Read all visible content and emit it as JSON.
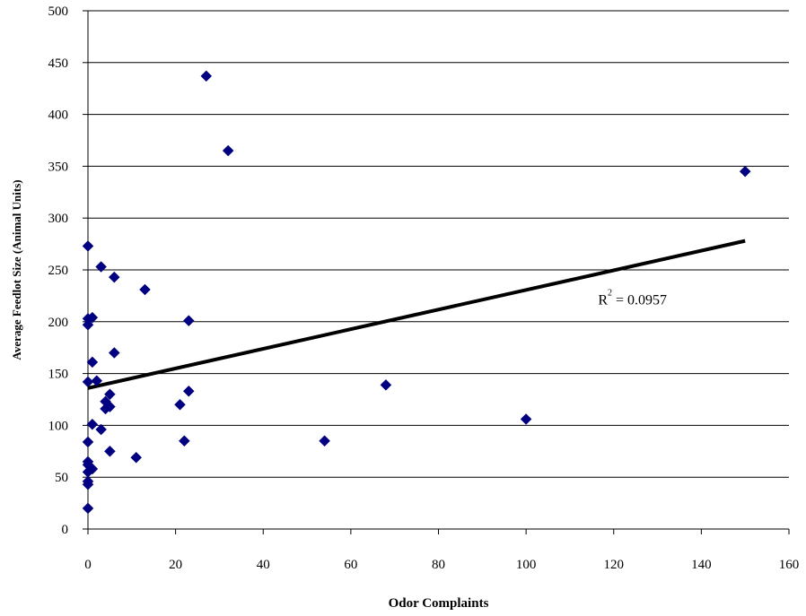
{
  "chart_data": {
    "type": "scatter",
    "xlabel": "Odor Complaints",
    "ylabel": "Average Feedlot Size (Animal Units)",
    "xlim": [
      0,
      160
    ],
    "ylim": [
      0,
      500
    ],
    "x_ticks": [
      "0",
      "20",
      "40",
      "60",
      "80",
      "100",
      "120",
      "140",
      "160"
    ],
    "y_ticks": [
      "0",
      "50",
      "100",
      "150",
      "200",
      "250",
      "300",
      "350",
      "400",
      "450",
      "500"
    ],
    "grid": "horizontal",
    "marker": "diamond",
    "marker_color": "#000080",
    "points": [
      {
        "x": 0,
        "y": 20
      },
      {
        "x": 0,
        "y": 43
      },
      {
        "x": 0,
        "y": 46
      },
      {
        "x": 0,
        "y": 55
      },
      {
        "x": 0,
        "y": 62
      },
      {
        "x": 0,
        "y": 65
      },
      {
        "x": 0,
        "y": 84
      },
      {
        "x": 0,
        "y": 142
      },
      {
        "x": 0,
        "y": 197
      },
      {
        "x": 0,
        "y": 203
      },
      {
        "x": 0,
        "y": 273
      },
      {
        "x": 1,
        "y": 58
      },
      {
        "x": 1,
        "y": 101
      },
      {
        "x": 1,
        "y": 161
      },
      {
        "x": 1,
        "y": 204
      },
      {
        "x": 2,
        "y": 143
      },
      {
        "x": 3,
        "y": 96
      },
      {
        "x": 3,
        "y": 253
      },
      {
        "x": 4,
        "y": 116
      },
      {
        "x": 4,
        "y": 123
      },
      {
        "x": 5,
        "y": 75
      },
      {
        "x": 5,
        "y": 118
      },
      {
        "x": 5,
        "y": 130
      },
      {
        "x": 6,
        "y": 170
      },
      {
        "x": 6,
        "y": 243
      },
      {
        "x": 11,
        "y": 69
      },
      {
        "x": 13,
        "y": 231
      },
      {
        "x": 21,
        "y": 120
      },
      {
        "x": 22,
        "y": 85
      },
      {
        "x": 23,
        "y": 133
      },
      {
        "x": 23,
        "y": 201
      },
      {
        "x": 27,
        "y": 437
      },
      {
        "x": 32,
        "y": 365
      },
      {
        "x": 54,
        "y": 85
      },
      {
        "x": 68,
        "y": 139
      },
      {
        "x": 100,
        "y": 106
      },
      {
        "x": 150,
        "y": 345
      }
    ],
    "trendline": {
      "type": "linear",
      "x": [
        0,
        150
      ],
      "y": [
        136,
        278
      ],
      "color": "#000000"
    },
    "annotation": {
      "base": "R",
      "sup": "2",
      "rest": " = 0.0957",
      "x": 115,
      "y": 222
    }
  }
}
